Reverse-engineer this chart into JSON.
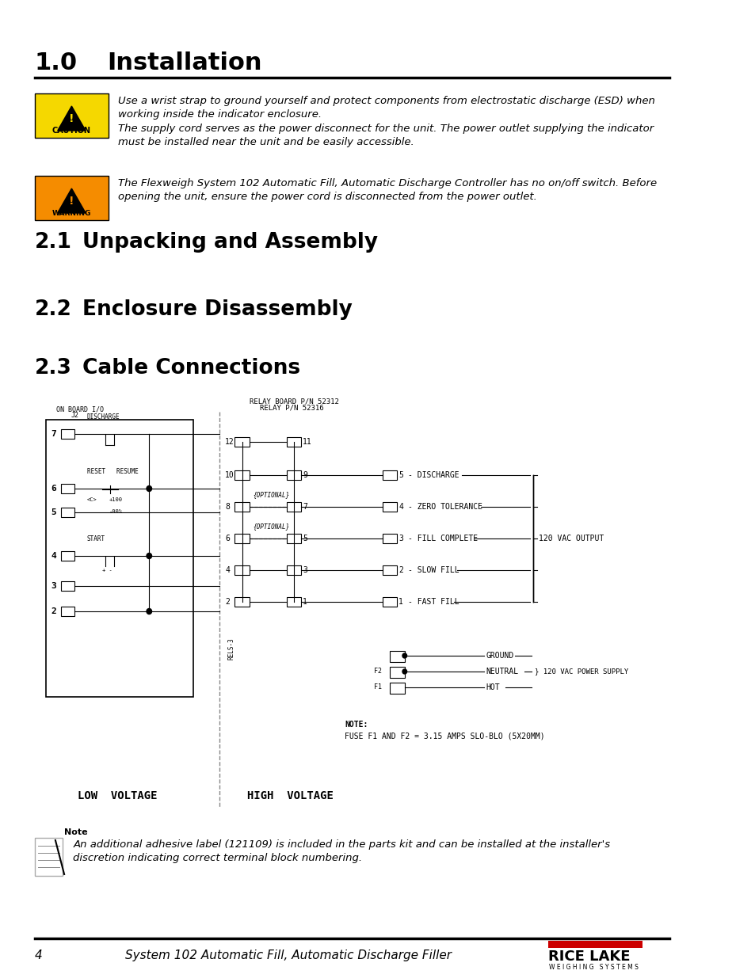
{
  "title_num": "1.0",
  "title_text": "Installation",
  "section21_num": "2.1",
  "section21_text": "Unpacking and Assembly",
  "section22_num": "2.2",
  "section22_text": "Enclosure Disassembly",
  "section23_num": "2.3",
  "section23_text": "Cable Connections",
  "caution_text1": "Use a wrist strap to ground yourself and protect components from electrostatic discharge (ESD) when\nworking inside the indicator enclosure.",
  "caution_text2": "The supply cord serves as the power disconnect for the unit. The power outlet supplying the indicator\nmust be installed near the unit and be easily accessible.",
  "warning_text": "The Flexweigh System 102 Automatic Fill, Automatic Discharge Controller has no on/off switch. Before\nopening the unit, ensure the power cord is disconnected from the power outlet.",
  "note_text": "An additional adhesive label (121109) is included in the parts kit and can be installed at the installer's\ndiscretion indicating correct terminal block numbering.",
  "footer_page": "4",
  "footer_text": "System 102 Automatic Fill, Automatic Discharge Filler",
  "bg_color": "#ffffff",
  "text_color": "#000000",
  "caution_color": "#f5d800",
  "warning_color": "#f58c00",
  "red_color": "#cc0000"
}
